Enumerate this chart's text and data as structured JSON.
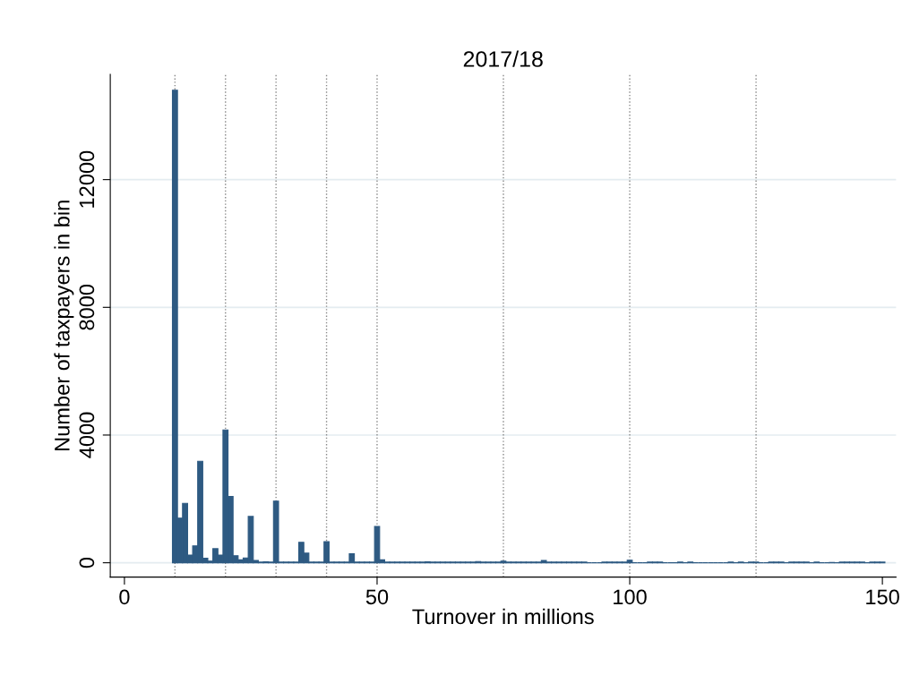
{
  "chart_data": {
    "type": "histogram",
    "title": "2017/18",
    "xlabel": "Turnover in millions",
    "ylabel": "Number of taxpayers in bin",
    "bins": [
      9.5,
      10.5,
      11.5,
      12.5,
      13.5,
      14.5,
      15.5,
      16.5,
      17.5,
      18.5,
      19.5,
      20.5,
      21.5,
      22.5,
      23.5,
      24.5,
      25.5,
      26.5,
      27.5,
      28.5,
      29.5,
      30.5,
      31.5,
      32.5,
      33.5,
      34.5,
      35.5,
      36.5,
      37.5,
      38.5,
      39.5,
      40.5,
      41.5,
      42.5,
      43.5,
      44.5,
      45.5,
      46.5,
      47.5,
      48.5,
      49.5,
      50.5,
      51.5,
      52.5,
      53.5,
      54.5,
      55.5,
      56.5,
      57.5,
      58.5,
      59.5,
      60.5,
      61.5,
      62.5,
      63.5,
      64.5,
      65.5,
      66.5,
      67.5,
      68.5,
      69.5,
      70.5,
      71.5,
      72.5,
      73.5,
      74.5,
      75.5,
      76.5,
      77.5,
      78.5,
      79.5,
      80.5,
      81.5,
      82.5,
      83.5,
      84.5,
      85.5,
      86.5,
      87.5,
      88.5,
      89.5,
      90.5,
      91.5,
      92.5,
      93.5,
      94.5,
      95.5,
      96.5,
      97.5,
      98.5,
      99.5,
      100.5,
      101.5,
      102.5,
      103.5,
      104.5,
      105.5,
      106.5,
      107.5,
      108.5,
      109.5,
      110.5,
      111.5,
      112.5,
      113.5,
      114.5,
      115.5,
      116.5,
      117.5,
      118.5,
      119.5,
      120.5,
      121.5,
      122.5,
      123.5,
      124.5,
      125.5,
      126.5,
      127.5,
      128.5,
      129.5,
      130.5,
      131.5,
      132.5,
      133.5,
      134.5,
      135.5,
      136.5,
      137.5,
      138.5,
      139.5,
      140.5,
      141.5,
      142.5,
      143.5,
      144.5,
      145.5,
      146.5,
      147.5,
      148.5,
      149.5,
      150.5
    ],
    "values": [
      14800,
      1400,
      1860,
      240,
      530,
      3180,
      140,
      50,
      440,
      240,
      4160,
      2080,
      220,
      90,
      150,
      1450,
      70,
      20,
      30,
      20,
      1930,
      20,
      20,
      20,
      20,
      640,
      300,
      20,
      20,
      20,
      660,
      20,
      20,
      20,
      20,
      280,
      20,
      20,
      20,
      20,
      1140,
      90,
      20,
      20,
      20,
      20,
      20,
      20,
      20,
      20,
      30,
      20,
      20,
      20,
      20,
      20,
      20,
      20,
      20,
      20,
      40,
      20,
      20,
      20,
      20,
      50,
      20,
      20,
      20,
      20,
      20,
      20,
      20,
      70,
      20,
      20,
      20,
      20,
      20,
      20,
      20,
      20,
      0,
      0,
      0,
      20,
      20,
      20,
      20,
      20,
      80,
      0,
      0,
      0,
      20,
      20,
      20,
      0,
      0,
      0,
      20,
      0,
      20,
      0,
      0,
      0,
      0,
      0,
      0,
      0,
      20,
      0,
      20,
      0,
      20,
      20,
      0,
      0,
      20,
      20,
      20,
      0,
      20,
      20,
      20,
      20,
      0,
      20,
      0,
      0,
      10,
      0,
      20,
      20,
      20,
      20,
      20,
      0,
      20,
      20,
      20
    ],
    "color": "#2e5a82",
    "xlim": [
      -2.8,
      152.7
    ],
    "xticks": [
      0,
      50,
      100,
      150
    ],
    "ylim": [
      -450,
      15300
    ],
    "yticks": [
      0,
      4000,
      8000,
      12000
    ],
    "grid": "y",
    "ref_lines": [
      {
        "axis": "x",
        "value": 10,
        "color": "#888888",
        "line_style": "dotted"
      },
      {
        "axis": "x",
        "value": 20,
        "color": "#888888",
        "line_style": "dotted"
      },
      {
        "axis": "x",
        "value": 30,
        "color": "#888888",
        "line_style": "dotted"
      },
      {
        "axis": "x",
        "value": 40,
        "color": "#888888",
        "line_style": "dotted"
      },
      {
        "axis": "x",
        "value": 50,
        "color": "#888888",
        "line_style": "dotted"
      },
      {
        "axis": "x",
        "value": 75,
        "color": "#888888",
        "line_style": "dotted"
      },
      {
        "axis": "x",
        "value": 100,
        "color": "#888888",
        "line_style": "dotted"
      },
      {
        "axis": "x",
        "value": 125,
        "color": "#888888",
        "line_style": "dotted"
      }
    ]
  }
}
